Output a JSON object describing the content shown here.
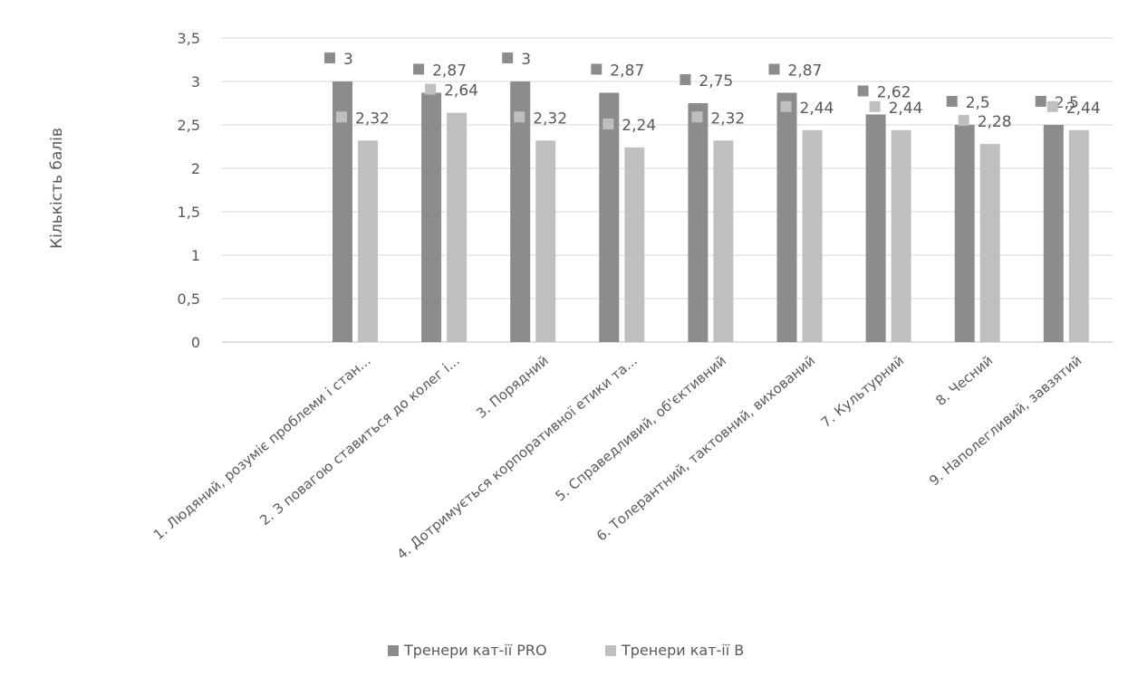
{
  "chart_data": {
    "type": "bar",
    "title": "",
    "xlabel": "",
    "ylabel": "Кількість балів",
    "ylim": [
      0,
      3.5
    ],
    "yticks": [
      "0",
      "0,5",
      "1",
      "1,5",
      "2",
      "2,5",
      "3",
      "3,5"
    ],
    "grid": true,
    "legend_position": "bottom",
    "categories": [
      "1. Людяний, розуміє проблеми і стан...",
      "2. З повагою ставиться до колег і...",
      "3. Порядний",
      "4. Дотримується корпоративної етики та...",
      "5. Справедливий, об'єктивний",
      "6. Толерантний, тактовний, вихований",
      "7. Культурний",
      "8. Чесний",
      "9. Наполегливий, завзятий"
    ],
    "series": [
      {
        "name": "Тренери кат-ії PRO",
        "color": "#8c8c8c",
        "values": [
          3,
          2.87,
          3,
          2.87,
          2.75,
          2.87,
          2.62,
          2.5,
          2.5
        ],
        "labels": [
          "3",
          "2,87",
          "3",
          "2,87",
          "2,75",
          "2,87",
          "2,62",
          "2,5",
          "2,5"
        ]
      },
      {
        "name": "Тренери кат-ії В",
        "color": "#bfbfbf",
        "values": [
          2.32,
          2.64,
          2.32,
          2.24,
          2.32,
          2.44,
          2.44,
          2.28,
          2.44
        ],
        "labels": [
          "2,32",
          "2,64",
          "2,32",
          "2,24",
          "2,32",
          "2,44",
          "2,44",
          "2,28",
          "2,44"
        ]
      }
    ]
  }
}
